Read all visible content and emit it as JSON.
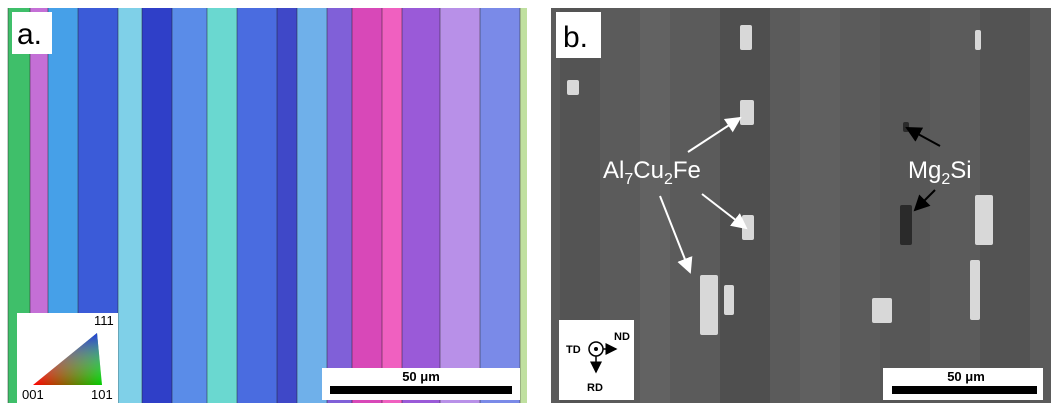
{
  "panels": [
    {
      "label": "a.",
      "scale_bar": "50 μm",
      "legend": {
        "top": "111",
        "left": "001",
        "right": "101"
      }
    },
    {
      "label": "b.",
      "scale_bar": "50 μm",
      "annotations": {
        "phase_1": [
          "Al",
          "7",
          "Cu",
          "2",
          "Fe"
        ],
        "phase_2": [
          "Mg",
          "2",
          "Si"
        ]
      },
      "axes": {
        "td": "TD",
        "nd": "ND",
        "rd": "RD"
      }
    }
  ]
}
